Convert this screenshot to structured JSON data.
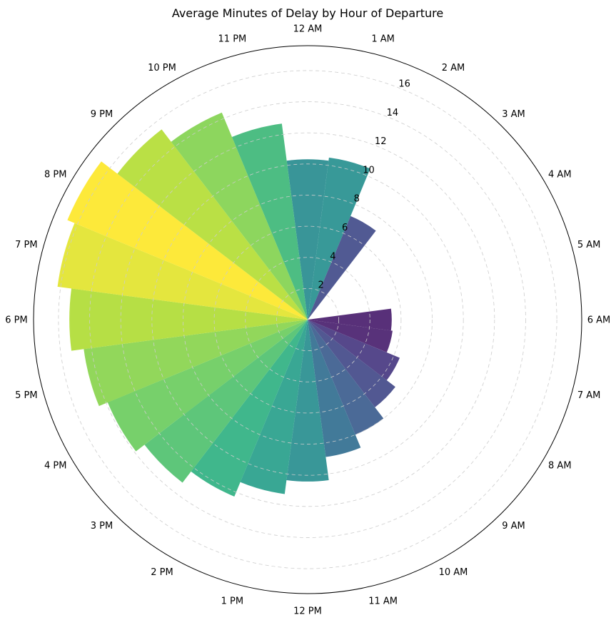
{
  "chart_data": {
    "type": "bar",
    "subtype": "polar",
    "title": "Average Minutes of Delay by Hour of Departure",
    "categories": [
      "12 AM",
      "1 AM",
      "2 AM",
      "3 AM",
      "4 AM",
      "5 AM",
      "6 AM",
      "7 AM",
      "8 AM",
      "9 AM",
      "10 AM",
      "11 AM",
      "12 PM",
      "1 PM",
      "2 PM",
      "3 PM",
      "4 PM",
      "5 PM",
      "6 PM",
      "7 PM",
      "8 PM",
      "9 PM",
      "10 PM",
      "11 PM"
    ],
    "values": [
      10.3,
      10.5,
      7.2,
      0,
      0,
      0,
      5.4,
      5.5,
      6.4,
      7.1,
      8.0,
      8.9,
      10.4,
      11.3,
      12.3,
      13.2,
      13.9,
      14.5,
      15.3,
      16.2,
      16.7,
      15.4,
      14.4,
      12.7
    ],
    "radial_ticks": [
      2,
      4,
      6,
      8,
      10,
      12,
      14,
      16
    ],
    "rlim": [
      0,
      17.6
    ],
    "grid": true,
    "colormap": "viridis",
    "color_range": [
      4.5,
      16.7
    ]
  }
}
